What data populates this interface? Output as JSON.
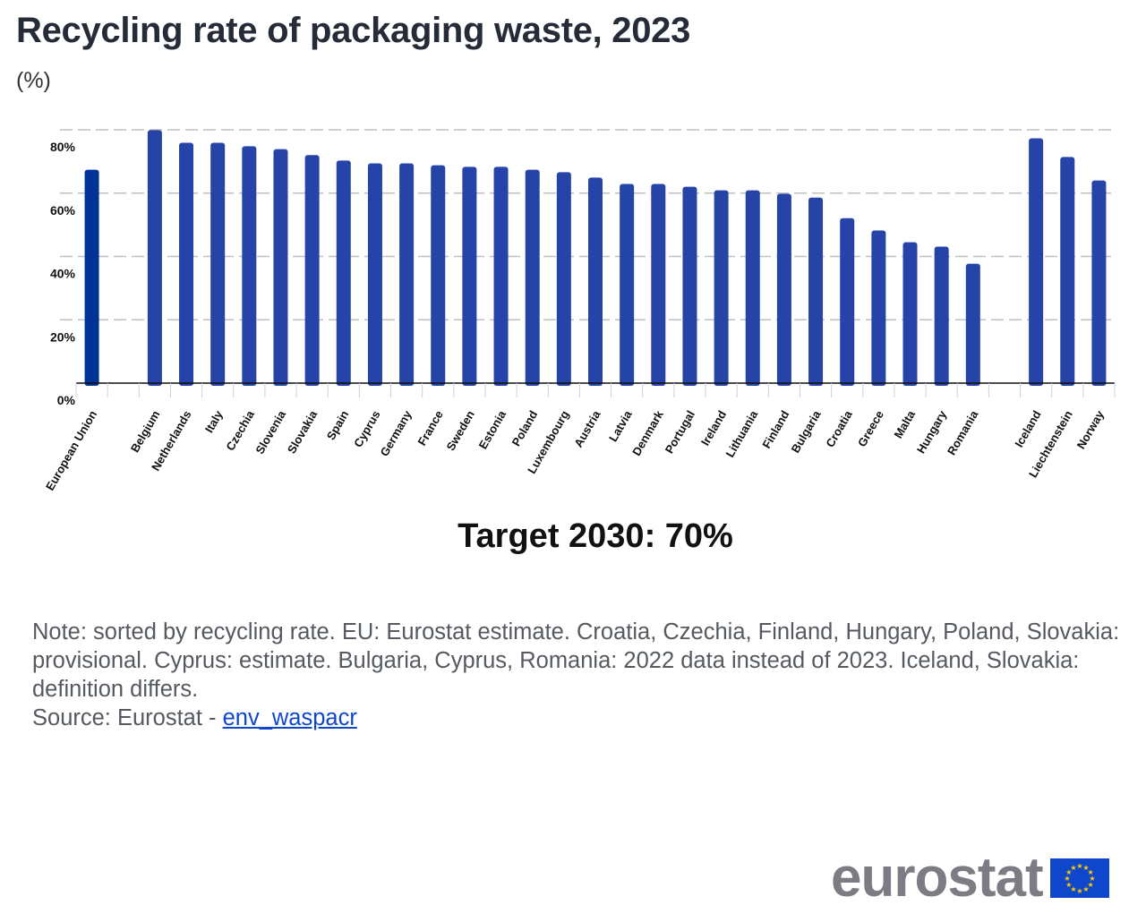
{
  "header": {
    "title": "Recycling rate of packaging waste, 2023",
    "unit": "(%)"
  },
  "colors": {
    "eu_bar": "#003399",
    "country_bar": "#2644a7",
    "grid": "#bfbfbf",
    "axis": "#111111"
  },
  "chart_data": {
    "type": "bar",
    "title": "Recycling rate of packaging waste, 2023",
    "xlabel": "",
    "ylabel": "(%)",
    "ylim": [
      0,
      80
    ],
    "yticks": [
      0,
      20,
      40,
      60,
      80
    ],
    "ytick_labels": [
      "0%",
      "20%",
      "40%",
      "60%",
      "80%"
    ],
    "grid": true,
    "categories": [
      "European Union",
      "",
      "Belgium",
      "Netherlands",
      "Italy",
      "Czechia",
      "Slovenia",
      "Slovakia",
      "Spain",
      "Cyprus",
      "Germany",
      "France",
      "Sweden",
      "Estonia",
      "Poland",
      "Luxembourg",
      "Austria",
      "Latvia",
      "Denmark",
      "Portugal",
      "Ireland",
      "Lithuania",
      "Finland",
      "Bulgaria",
      "Croatia",
      "Greece",
      "Malta",
      "Hungary",
      "Romania",
      "",
      "Iceland",
      "Liechtenstein",
      "Norway"
    ],
    "values": [
      67.4,
      null,
      79.9,
      75.9,
      75.9,
      74.8,
      73.9,
      72.0,
      70.3,
      69.4,
      69.4,
      68.8,
      68.3,
      68.3,
      67.4,
      66.6,
      64.9,
      62.9,
      62.9,
      62.0,
      60.9,
      60.9,
      59.8,
      58.6,
      52.1,
      48.2,
      44.5,
      43.1,
      37.7,
      null,
      77.3,
      71.4,
      64.0
    ],
    "highlight": [
      "European Union"
    ]
  },
  "annotation": {
    "target": "Target 2030: 70%"
  },
  "footer": {
    "note": "Note: sorted by recycling rate. EU: Eurostat estimate. Croatia, Czechia, Finland, Hungary, Poland, Slovakia: provisional. Cyprus: estimate. Bulgaria, Cyprus, Romania: 2022 data instead of 2023. Iceland, Slovakia: definition differs.",
    "source_prefix": "Source: Eurostat - ",
    "source_link": "env_waspacr"
  },
  "logo": {
    "text": "eurostat",
    "flag_icon": "eu-flag-icon"
  }
}
